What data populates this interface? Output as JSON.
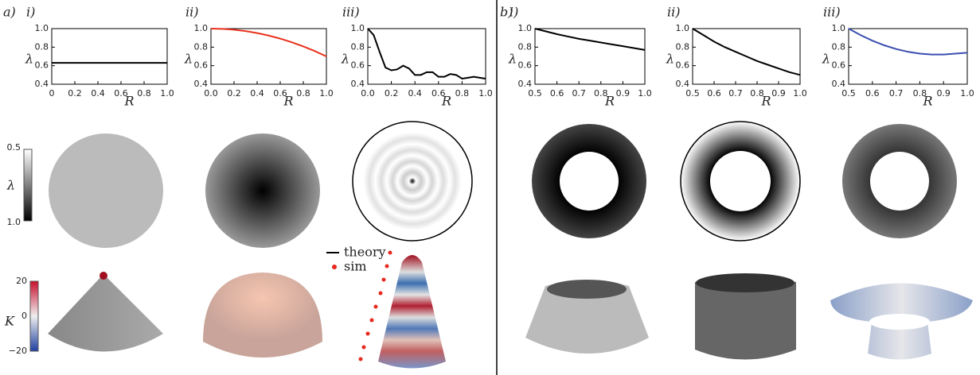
{
  "figure": {
    "panels": [
      "a)",
      "b)"
    ],
    "lambda_colorbar": {
      "label": "λ",
      "ticks": [
        0.5,
        {
          "value": 1,
          "label": "1.0"
        }
      ]
    },
    "k_colorbar": {
      "label": "K",
      "ticks": [
        20,
        0,
        {
          "value": -20,
          "label": "−20"
        }
      ]
    },
    "legend": [
      "theory",
      "sim"
    ]
  },
  "chart_data": [
    {
      "type": "line",
      "title": "i)",
      "x_label": "R",
      "y_label": "λ",
      "xlim": [
        0,
        1
      ],
      "ylim": [
        0.4,
        1
      ],
      "xticks": [
        0,
        0.2,
        0.4,
        0.6,
        0.8,
        {
          "value": 1,
          "label": "1.0"
        }
      ],
      "yticks": [
        0.4,
        0.6,
        0.8,
        {
          "value": 1,
          "label": "1.0"
        }
      ],
      "series": [
        {
          "color": "#000000",
          "x": [
            0,
            1
          ],
          "values": [
            0.63,
            0.63
          ]
        }
      ]
    },
    {
      "type": "line",
      "title": "ii)",
      "x_label": "R",
      "y_label": "λ",
      "xlim": [
        0,
        1
      ],
      "ylim": [
        0.4,
        1
      ],
      "xticks": [
        {
          "value": 0,
          "label": "0.0"
        },
        0.2,
        0.4,
        0.6,
        0.8,
        {
          "value": 1,
          "label": "1.0"
        }
      ],
      "yticks": [
        0.4,
        0.6,
        0.8,
        {
          "value": 1,
          "label": "1.0"
        }
      ],
      "series": [
        {
          "color": "#e8321e",
          "x": [
            0,
            0.1,
            0.2,
            0.3,
            0.4,
            0.5,
            0.6,
            0.7,
            0.8,
            0.9,
            1
          ],
          "values": [
            1,
            0.997,
            0.988,
            0.973,
            0.952,
            0.925,
            0.892,
            0.853,
            0.808,
            0.757,
            0.7
          ]
        }
      ]
    },
    {
      "type": "line",
      "title": "iii)",
      "x_label": "R",
      "y_label": "λ",
      "xlim": [
        0,
        1
      ],
      "ylim": [
        0.4,
        1
      ],
      "xticks": [
        {
          "value": 0,
          "label": "0.0"
        },
        0.2,
        0.4,
        0.6,
        0.8,
        {
          "value": 1,
          "label": "1.0"
        }
      ],
      "yticks": [
        0.4,
        0.6,
        0.8,
        {
          "value": 1,
          "label": "1.0"
        }
      ],
      "series": [
        {
          "color": "#000000",
          "x": [
            0,
            0.05,
            0.1,
            0.15,
            0.2,
            0.25,
            0.3,
            0.35,
            0.4,
            0.45,
            0.5,
            0.55,
            0.6,
            0.65,
            0.7,
            0.75,
            0.8,
            0.85,
            0.9,
            0.95,
            1
          ],
          "values": [
            1,
            0.93,
            0.75,
            0.58,
            0.55,
            0.56,
            0.6,
            0.57,
            0.5,
            0.5,
            0.53,
            0.53,
            0.48,
            0.48,
            0.51,
            0.5,
            0.46,
            0.47,
            0.48,
            0.47,
            0.46
          ]
        }
      ]
    },
    {
      "type": "line",
      "title": "i)",
      "x_label": "R",
      "y_label": "λ",
      "xlim": [
        0.5,
        1
      ],
      "ylim": [
        0.4,
        1
      ],
      "xticks": [
        0.5,
        0.6,
        0.7,
        0.8,
        0.9,
        {
          "value": 1,
          "label": "1.0"
        }
      ],
      "yticks": [
        0.4,
        0.6,
        0.8,
        {
          "value": 1,
          "label": "1.0"
        }
      ],
      "series": [
        {
          "color": "#000000",
          "x": [
            0.5,
            0.55,
            0.6,
            0.65,
            0.7,
            0.75,
            0.8,
            0.85,
            0.9,
            0.95,
            1
          ],
          "values": [
            1,
            0.97,
            0.94,
            0.915,
            0.89,
            0.87,
            0.85,
            0.83,
            0.81,
            0.79,
            0.77
          ]
        }
      ]
    },
    {
      "type": "line",
      "title": "ii)",
      "x_label": "R",
      "y_label": "λ",
      "xlim": [
        0.5,
        1
      ],
      "ylim": [
        0.4,
        1
      ],
      "xticks": [
        0.5,
        0.6,
        0.7,
        0.8,
        0.9,
        {
          "value": 1,
          "label": "1.0"
        }
      ],
      "yticks": [
        0.4,
        0.6,
        0.8,
        {
          "value": 1,
          "label": "1.0"
        }
      ],
      "series": [
        {
          "color": "#000000",
          "x": [
            0.5,
            0.55,
            0.6,
            0.65,
            0.7,
            0.75,
            0.8,
            0.85,
            0.9,
            0.95,
            1
          ],
          "values": [
            1,
            0.93,
            0.86,
            0.8,
            0.75,
            0.7,
            0.65,
            0.61,
            0.57,
            0.53,
            0.5
          ]
        }
      ]
    },
    {
      "type": "line",
      "title": "iii)",
      "x_label": "R",
      "y_label": "λ",
      "xlim": [
        0.5,
        1
      ],
      "ylim": [
        0.4,
        1
      ],
      "xticks": [
        0.5,
        0.6,
        0.7,
        0.8,
        0.9,
        {
          "value": 1,
          "label": "1.0"
        }
      ],
      "yticks": [
        0.4,
        0.6,
        0.8,
        {
          "value": 1,
          "label": "1.0"
        }
      ],
      "series": [
        {
          "color": "#3a4fb0",
          "x": [
            0.5,
            0.55,
            0.6,
            0.65,
            0.7,
            0.75,
            0.8,
            0.85,
            0.9,
            0.95,
            1
          ],
          "values": [
            1,
            0.93,
            0.87,
            0.82,
            0.78,
            0.75,
            0.73,
            0.72,
            0.72,
            0.73,
            0.74
          ]
        }
      ]
    }
  ]
}
